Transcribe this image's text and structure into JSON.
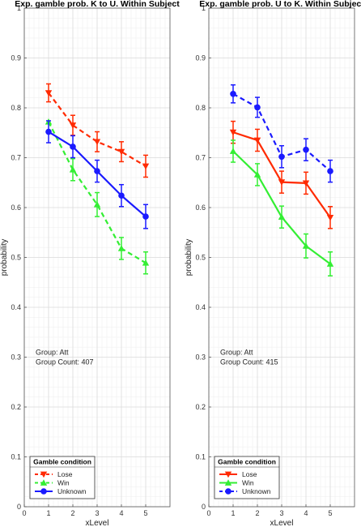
{
  "chart_data": [
    {
      "type": "line",
      "title": "Exp. gamble prob. K to U. Within Subject",
      "xlabel": "xLevel",
      "ylabel": "probability",
      "xlim": [
        0,
        6
      ],
      "ylim": [
        0,
        1
      ],
      "xticks": [
        "0",
        "1",
        "2",
        "3",
        "4",
        "5"
      ],
      "yticks": [
        "0",
        "0.1",
        "0.2",
        "0.3",
        "0.4",
        "0.5",
        "0.6",
        "0.7",
        "0.8",
        "0.9",
        "1"
      ],
      "x": [
        1,
        2,
        3,
        4,
        5
      ],
      "grid": true,
      "legend_title": "Gamble condition",
      "legend_position": "bottom-left",
      "annotation_lines": [
        "Group: Att",
        "Group Count: 407"
      ],
      "series": [
        {
          "name": "Lose",
          "color": "#ff2a00",
          "dashed": true,
          "marker": "triangle-down",
          "values": [
            0.83,
            0.765,
            0.732,
            0.712,
            0.683
          ],
          "errors": [
            0.018,
            0.02,
            0.02,
            0.02,
            0.022
          ]
        },
        {
          "name": "Win",
          "color": "#33ee33",
          "dashed": true,
          "marker": "triangle-up",
          "values": [
            0.772,
            0.676,
            0.606,
            0.518,
            0.489
          ],
          "errors": [
            0.0,
            0.022,
            0.024,
            0.022,
            0.022
          ]
        },
        {
          "name": "Unknown",
          "color": "#1a1aff",
          "dashed": false,
          "marker": "circle",
          "values": [
            0.752,
            0.722,
            0.673,
            0.624,
            0.582
          ],
          "errors": [
            0.022,
            0.022,
            0.022,
            0.022,
            0.024
          ]
        }
      ]
    },
    {
      "type": "line",
      "title": "Exp. gamble prob. U to K. Within Subject",
      "xlabel": "xLevel",
      "ylabel": "probability",
      "xlim": [
        0,
        6
      ],
      "ylim": [
        0,
        1
      ],
      "xticks": [
        "0",
        "1",
        "2",
        "3",
        "4",
        "5"
      ],
      "yticks": [
        "0",
        "0.1",
        "0.2",
        "0.3",
        "0.4",
        "0.5",
        "0.6",
        "0.7",
        "0.8",
        "0.9",
        "1"
      ],
      "x": [
        1,
        2,
        3,
        4,
        5
      ],
      "grid": true,
      "legend_title": "Gamble condition",
      "legend_position": "bottom-left",
      "annotation_lines": [
        "Group: Att",
        "Group Count: 415"
      ],
      "series": [
        {
          "name": "Lose",
          "color": "#ff2a00",
          "dashed": false,
          "marker": "triangle-down",
          "values": [
            0.751,
            0.735,
            0.651,
            0.649,
            0.58
          ],
          "errors": [
            0.022,
            0.022,
            0.022,
            0.022,
            0.022
          ]
        },
        {
          "name": "Win",
          "color": "#33ee33",
          "dashed": false,
          "marker": "triangle-up",
          "values": [
            0.713,
            0.666,
            0.581,
            0.523,
            0.487
          ],
          "errors": [
            0.022,
            0.022,
            0.022,
            0.024,
            0.024
          ]
        },
        {
          "name": "Unknown",
          "color": "#1a1aff",
          "dashed": true,
          "marker": "circle",
          "values": [
            0.828,
            0.801,
            0.702,
            0.716,
            0.673
          ],
          "errors": [
            0.018,
            0.02,
            0.022,
            0.022,
            0.022
          ]
        }
      ]
    }
  ]
}
